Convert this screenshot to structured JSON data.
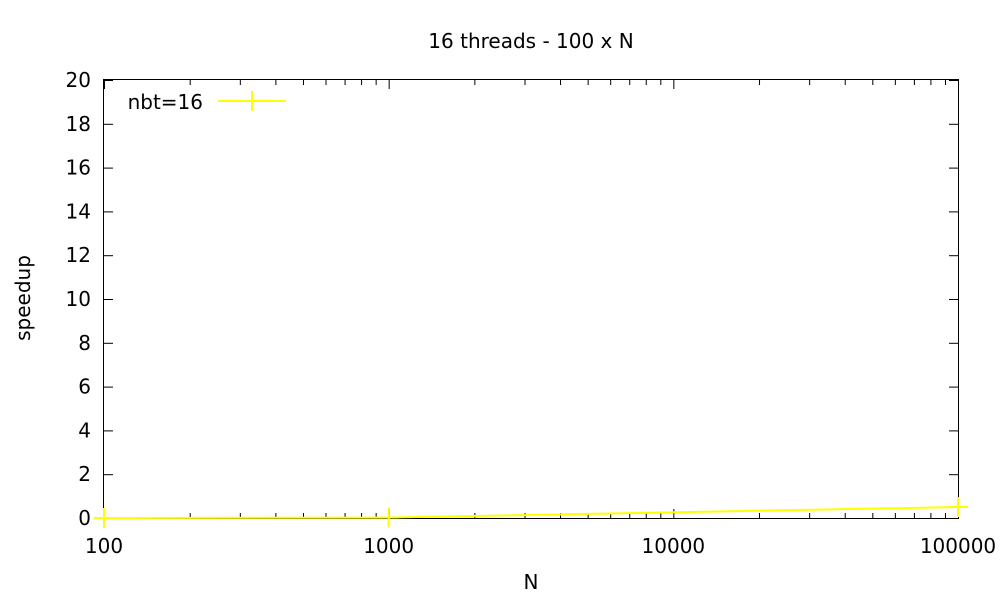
{
  "chart_data": {
    "type": "line",
    "title": "16 threads - 100 x N",
    "xlabel": "N",
    "ylabel": "speedup",
    "x_scale": "log",
    "xlim": [
      100,
      100000
    ],
    "ylim": [
      0,
      20
    ],
    "x_ticks": [
      100,
      1000,
      10000,
      100000
    ],
    "x_tick_labels": [
      "100",
      "1000",
      "10000",
      "100000"
    ],
    "y_ticks": [
      0,
      2,
      4,
      6,
      8,
      10,
      12,
      14,
      16,
      18,
      20
    ],
    "y_tick_labels": [
      "0",
      "2",
      "4",
      "6",
      "8",
      "10",
      "12",
      "14",
      "16",
      "18",
      "20"
    ],
    "grid": false,
    "legend_position": "top-left",
    "series": [
      {
        "name": "nbt=16",
        "color": "#ffff00",
        "marker": "plus",
        "x": [
          100,
          1000,
          100000
        ],
        "values": [
          0.0,
          0.02,
          0.5
        ]
      }
    ]
  }
}
